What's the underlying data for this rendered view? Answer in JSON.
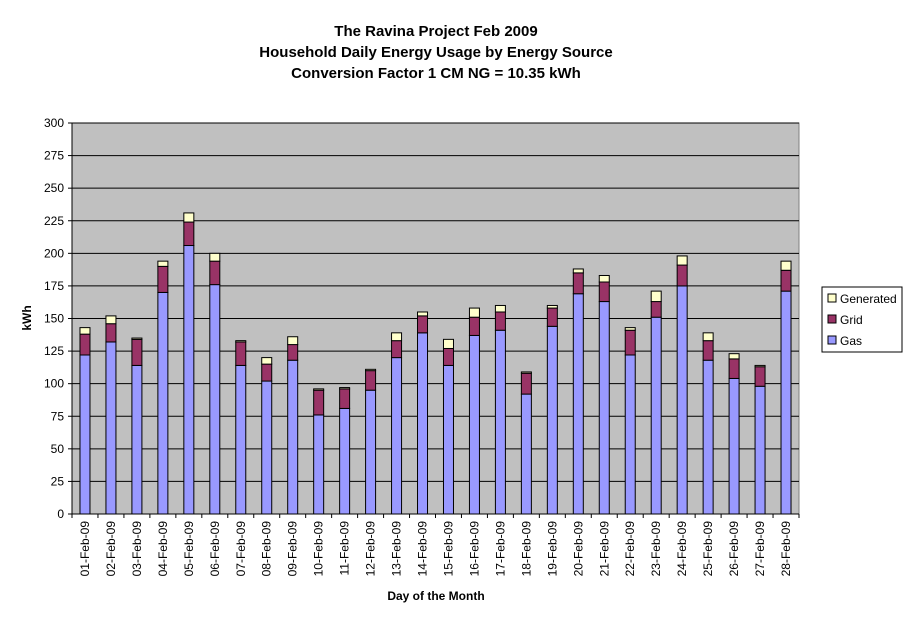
{
  "chart_data": {
    "type": "bar",
    "stacked": true,
    "title_lines": [
      "The Ravina Project Feb 2009",
      "Household Daily Energy Usage by Energy Source",
      "Conversion Factor 1 CM NG = 10.35 kWh"
    ],
    "xlabel": "Day of the Month",
    "ylabel": "kWh",
    "ylim": [
      0,
      300
    ],
    "yticks": [
      0,
      25,
      50,
      75,
      100,
      125,
      150,
      175,
      200,
      225,
      250,
      275,
      300
    ],
    "grid": true,
    "legend_position": "right",
    "categories": [
      "01-Feb-09",
      "02-Feb-09",
      "03-Feb-09",
      "04-Feb-09",
      "05-Feb-09",
      "06-Feb-09",
      "07-Feb-09",
      "08-Feb-09",
      "09-Feb-09",
      "10-Feb-09",
      "11-Feb-09",
      "12-Feb-09",
      "13-Feb-09",
      "14-Feb-09",
      "15-Feb-09",
      "16-Feb-09",
      "17-Feb-09",
      "18-Feb-09",
      "19-Feb-09",
      "20-Feb-09",
      "21-Feb-09",
      "22-Feb-09",
      "23-Feb-09",
      "24-Feb-09",
      "25-Feb-09",
      "26-Feb-09",
      "27-Feb-09",
      "28-Feb-09"
    ],
    "series": [
      {
        "name": "Gas",
        "color": "#9999ff",
        "values": [
          122,
          132,
          114,
          170,
          206,
          176,
          114,
          102,
          118,
          76,
          81,
          95,
          120,
          139,
          114,
          137,
          141,
          92,
          144,
          169,
          163,
          122,
          151,
          175,
          118,
          104,
          98,
          171
        ]
      },
      {
        "name": "Grid",
        "color": "#993366",
        "values": [
          16,
          14,
          20,
          20,
          18,
          18,
          18,
          13,
          12,
          19,
          15,
          15,
          13,
          13,
          13,
          14,
          14,
          16,
          14,
          16,
          15,
          19,
          12,
          16,
          15,
          15,
          15,
          16
        ]
      },
      {
        "name": "Generated",
        "color": "#ffffcc",
        "values": [
          5,
          6,
          1,
          4,
          7,
          6,
          1,
          5,
          6,
          1,
          1,
          1,
          6,
          3,
          7,
          7,
          5,
          1,
          2,
          3,
          5,
          2,
          8,
          7,
          6,
          4,
          1,
          7
        ]
      }
    ]
  }
}
